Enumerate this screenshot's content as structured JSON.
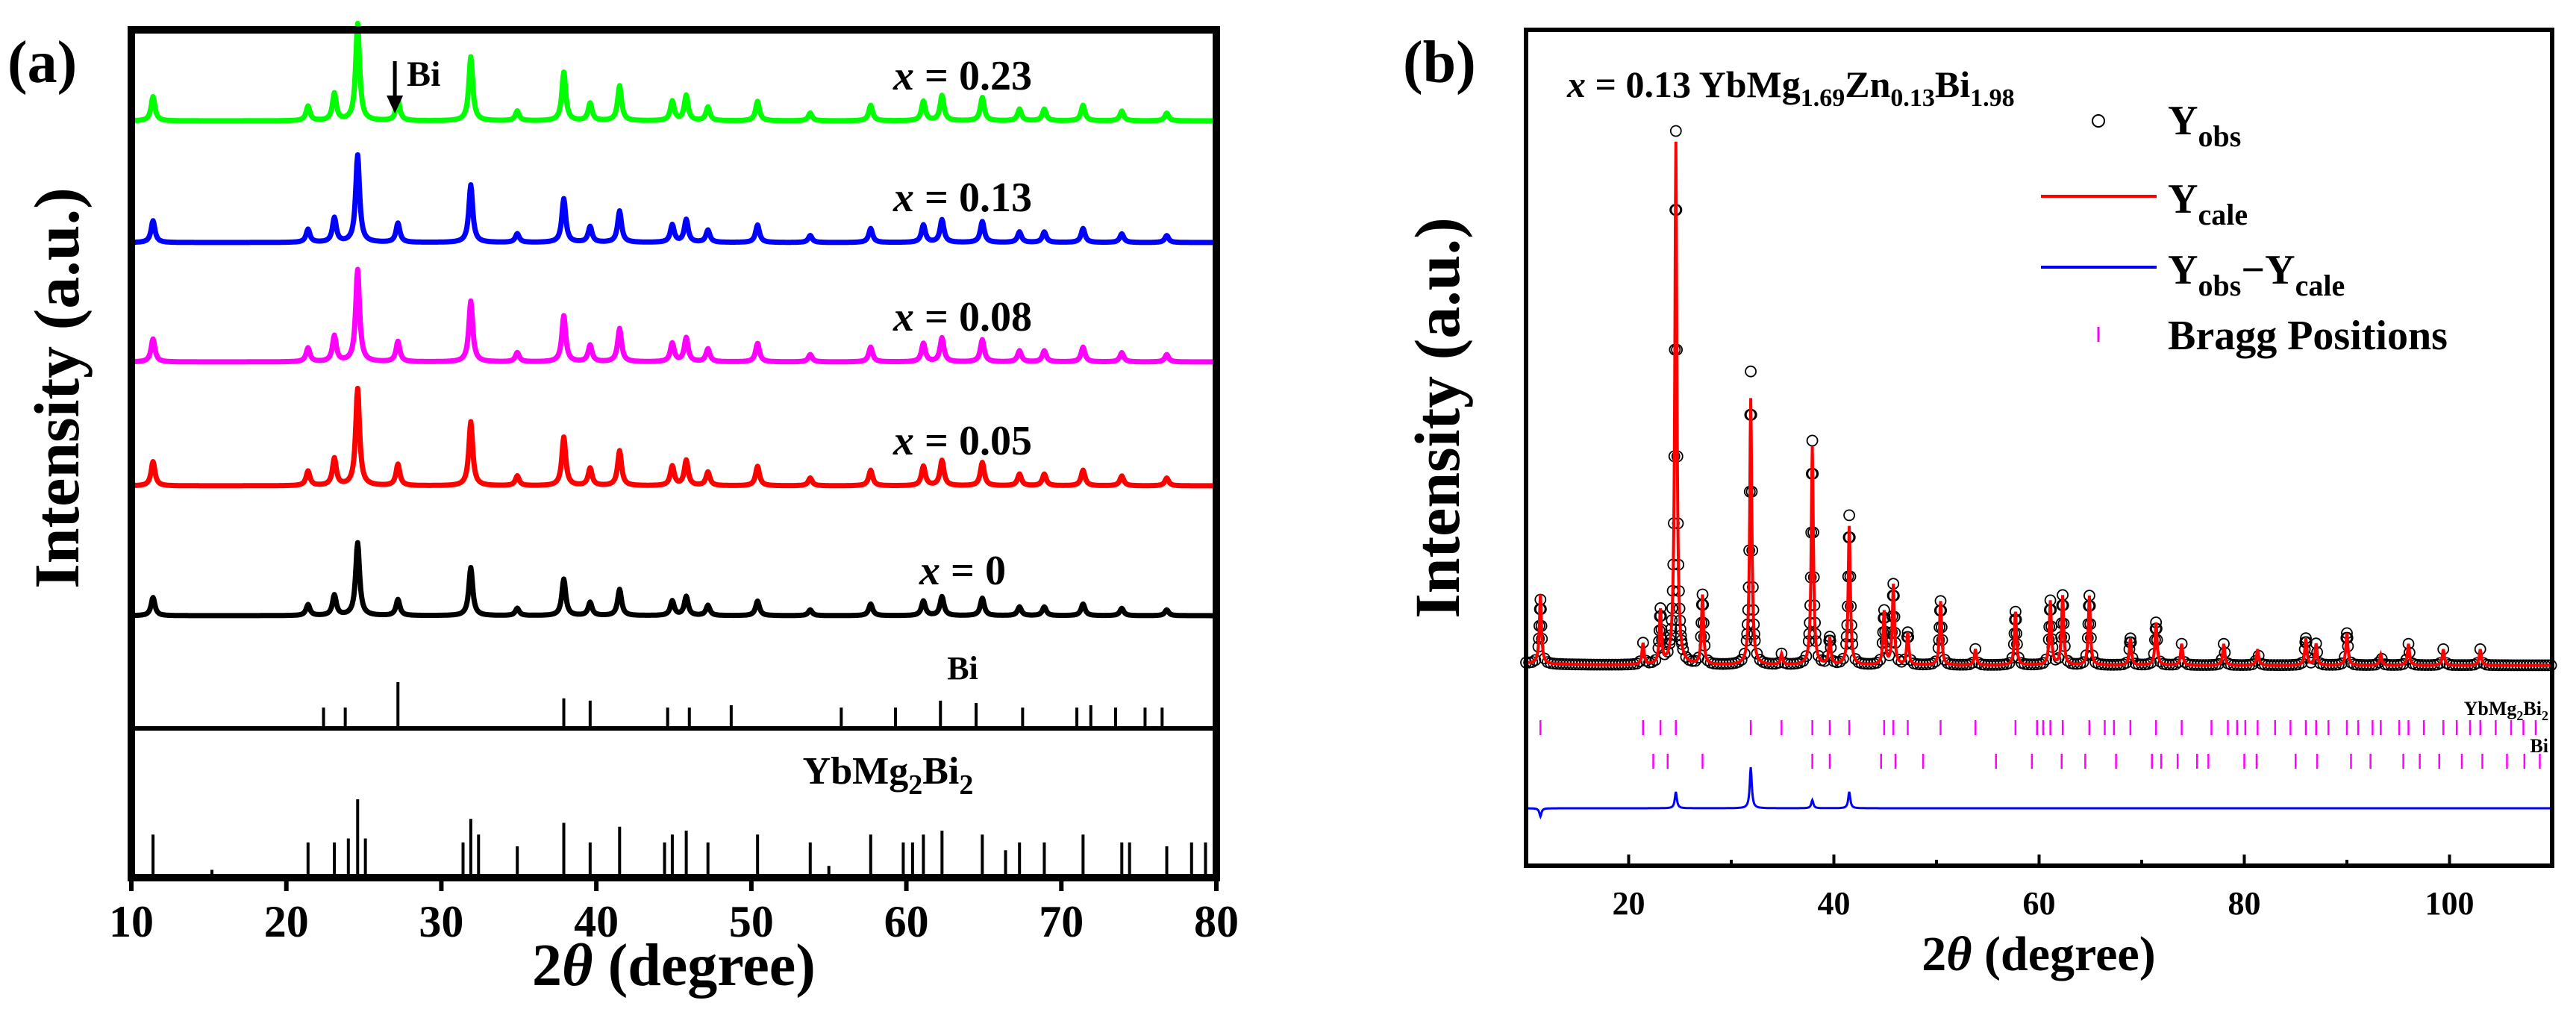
{
  "chart_data": [
    {
      "panel_label": "(a)",
      "type": "line",
      "xlabel_prefix": "2",
      "xlabel_theta": "θ",
      "xlabel_rest": " (degree)",
      "ylabel": "Intensity (a.u.)",
      "xlim": [
        10,
        80
      ],
      "xticks": [
        "10",
        "20",
        "30",
        "40",
        "50",
        "60",
        "70",
        "80"
      ],
      "peak_positions": [
        11.4,
        21.4,
        23.1,
        24.6,
        27.2,
        31.9,
        34.9,
        37.9,
        39.6,
        41.5,
        44.9,
        45.8,
        47.2,
        50.4,
        53.8,
        57.7,
        61.1,
        62.3,
        64.9,
        67.3,
        68.9,
        71.4,
        73.9,
        76.8
      ],
      "peak_heights": [
        0.25,
        0.15,
        0.28,
        1.0,
        0.22,
        0.66,
        0.1,
        0.5,
        0.18,
        0.36,
        0.2,
        0.26,
        0.14,
        0.2,
        0.08,
        0.16,
        0.2,
        0.26,
        0.24,
        0.12,
        0.12,
        0.16,
        0.1,
        0.08
      ],
      "series": [
        {
          "name": "x = 0.23",
          "x_label": "x",
          "value_label": " = 0.23",
          "color": "#00ff00",
          "scale": 1.0
        },
        {
          "name": "x = 0.13",
          "x_label": "x",
          "value_label": " = 0.13",
          "color": "#0000ff",
          "scale": 0.9
        },
        {
          "name": "x = 0.08",
          "x_label": "x",
          "value_label": " = 0.08",
          "color": "#ff00ff",
          "scale": 0.95
        },
        {
          "name": "x = 0.05",
          "x_label": "x",
          "value_label": " = 0.05",
          "color": "#ff0000",
          "scale": 1.0
        },
        {
          "name": "x = 0",
          "x_label": "x",
          "value_label": " = 0",
          "color": "#000000",
          "scale": 0.75
        }
      ],
      "bi_arrow_label": "Bi",
      "bi_arrow_position": 27.0,
      "reference_patterns": [
        {
          "name": "Bi",
          "positions": [
            22.4,
            23.8,
            27.2,
            37.9,
            39.6,
            44.6,
            46.0,
            48.7,
            55.8,
            59.3,
            62.2,
            64.5,
            67.5,
            71.0,
            71.9,
            73.5,
            75.4,
            76.5
          ],
          "heights": [
            0.45,
            0.45,
            1.0,
            0.65,
            0.6,
            0.45,
            0.45,
            0.5,
            0.45,
            0.45,
            0.6,
            0.55,
            0.45,
            0.45,
            0.5,
            0.45,
            0.45,
            0.45
          ]
        },
        {
          "name_main": "YbMg",
          "name_sub1": "2",
          "name_mid": "Bi",
          "name_sub2": "2",
          "positions": [
            11.4,
            15.2,
            21.4,
            23.1,
            24.0,
            24.6,
            25.1,
            31.4,
            31.9,
            32.4,
            34.9,
            37.9,
            39.6,
            41.5,
            44.4,
            44.9,
            45.8,
            47.2,
            50.4,
            53.8,
            55.0,
            57.7,
            59.8,
            60.4,
            61.1,
            62.3,
            64.9,
            66.4,
            67.3,
            68.9,
            71.4,
            73.9,
            74.4,
            76.8,
            78.4,
            79.3
          ],
          "heights": [
            0.55,
            0.1,
            0.45,
            0.45,
            0.5,
            1.0,
            0.5,
            0.45,
            0.75,
            0.55,
            0.4,
            0.7,
            0.45,
            0.65,
            0.45,
            0.55,
            0.6,
            0.45,
            0.55,
            0.45,
            0.15,
            0.55,
            0.45,
            0.45,
            0.55,
            0.6,
            0.55,
            0.35,
            0.45,
            0.45,
            0.55,
            0.45,
            0.45,
            0.4,
            0.45,
            0.45
          ]
        }
      ]
    },
    {
      "panel_label": "(b)",
      "type": "scatter",
      "title_x": "x",
      "title_value": " = 0.13  ",
      "title_formula": [
        "YbMg",
        "1.69",
        "Zn",
        "0.13",
        "Bi",
        "1.98"
      ],
      "xlabel_prefix": "2",
      "xlabel_theta": "θ",
      "xlabel_rest": " (degree)",
      "ylabel": "Intensity (a.u.)",
      "xlim": [
        10,
        110
      ],
      "xticks": [
        "20",
        "40",
        "60",
        "80",
        "100"
      ],
      "legend": [
        {
          "symbol": "circle",
          "label_main": "Y",
          "label_sub": "obs"
        },
        {
          "symbol": "line",
          "color": "#ff0000",
          "label_main": "Y",
          "label_sub": "cale"
        },
        {
          "symbol": "line",
          "color": "#0000ff",
          "label_main": "Y",
          "label_sub": "obs",
          "label_op": "−Y",
          "label_sub2": "cale"
        },
        {
          "symbol": "tick",
          "color": "#ff00ff",
          "label_main": "Bragg Positions"
        }
      ],
      "peak_positions": [
        11.4,
        21.4,
        23.1,
        24.6,
        27.2,
        31.9,
        34.9,
        37.9,
        39.6,
        41.5,
        44.9,
        45.8,
        47.2,
        50.4,
        53.8,
        57.7,
        61.1,
        62.3,
        64.9,
        68.9,
        71.4,
        73.9,
        78.0,
        81.3,
        86.0,
        87.0,
        90.0,
        93.3,
        96.0,
        99.4,
        103.0
      ],
      "peak_heights_obs": [
        0.12,
        0.04,
        0.1,
        1.0,
        0.13,
        0.55,
        0.02,
        0.42,
        0.05,
        0.28,
        0.1,
        0.15,
        0.06,
        0.12,
        0.03,
        0.1,
        0.12,
        0.13,
        0.13,
        0.05,
        0.08,
        0.04,
        0.04,
        0.03,
        0.05,
        0.04,
        0.06,
        0.02,
        0.04,
        0.03,
        0.03
      ],
      "peak_heights_calc": [
        0.13,
        0.04,
        0.1,
        0.98,
        0.13,
        0.5,
        0.02,
        0.41,
        0.05,
        0.26,
        0.1,
        0.15,
        0.06,
        0.12,
        0.03,
        0.1,
        0.12,
        0.13,
        0.13,
        0.05,
        0.08,
        0.04,
        0.04,
        0.03,
        0.05,
        0.04,
        0.06,
        0.02,
        0.04,
        0.03,
        0.03
      ],
      "bragg_rows": [
        {
          "name_main": "YbMg",
          "name_sub": "2",
          "name_end": "Bi",
          "name_sub2": "2",
          "positions": [
            11.4,
            21.4,
            23.1,
            24.6,
            31.9,
            34.9,
            37.9,
            39.6,
            41.5,
            44.9,
            45.8,
            47.2,
            50.4,
            53.8,
            57.7,
            59.8,
            60.4,
            61.1,
            62.3,
            64.9,
            66.4,
            67.3,
            68.9,
            71.4,
            73.9,
            76.8,
            78.4,
            79.3,
            80.1,
            81.3,
            83.0,
            84.5,
            86.0,
            87.0,
            88.2,
            90.0,
            91.1,
            92.5,
            93.3,
            95.1,
            96.0,
            97.5,
            99.4,
            100.7,
            102.0,
            103.0,
            104.5,
            106.0,
            107.2,
            108.4
          ]
        },
        {
          "name": "Bi",
          "positions": [
            22.4,
            23.8,
            27.2,
            37.9,
            39.6,
            44.6,
            46.0,
            48.7,
            55.8,
            59.3,
            62.2,
            64.5,
            67.5,
            71.0,
            71.9,
            73.5,
            75.4,
            76.5,
            80.0,
            81.2,
            85.0,
            87.1,
            90.4,
            92.3,
            95.5,
            97.1,
            99.0,
            101.2,
            103.2,
            105.6,
            107.3,
            108.8
          ]
        }
      ]
    }
  ]
}
